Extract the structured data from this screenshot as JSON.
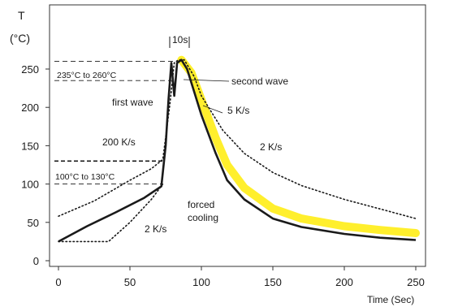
{
  "chart_data": {
    "type": "line",
    "title": "",
    "ylabel": "T",
    "yunit": "(°C)",
    "xlabel": "Time (Sec)",
    "xlim": [
      0,
      250
    ],
    "ylim": [
      0,
      270
    ],
    "x_ticks": [
      "0",
      "50",
      "100",
      "150",
      "200",
      "250"
    ],
    "y_ticks": [
      "0",
      "50",
      "100",
      "150",
      "200",
      "250"
    ],
    "grid": false,
    "series": [
      {
        "style": "solid",
        "color": "#1a1a1a",
        "points": [
          [
            0,
            25
          ],
          [
            20,
            45
          ],
          [
            40,
            63
          ],
          [
            60,
            82
          ],
          [
            72,
            97
          ],
          [
            75,
            150
          ],
          [
            77,
            210
          ],
          [
            79,
            258
          ],
          [
            81,
            215
          ],
          [
            83,
            258
          ],
          [
            86,
            262
          ],
          [
            90,
            250
          ],
          [
            95,
            220
          ],
          [
            100,
            190
          ],
          [
            110,
            140
          ],
          [
            118,
            105
          ],
          [
            130,
            80
          ],
          [
            150,
            55
          ],
          [
            170,
            44
          ],
          [
            200,
            35
          ],
          [
            225,
            30
          ],
          [
            250,
            27
          ]
        ]
      },
      {
        "style": "yellow-band",
        "color": "#ffee22",
        "points": [
          [
            86,
            262
          ],
          [
            93,
            245
          ],
          [
            100,
            210
          ],
          [
            110,
            160
          ],
          [
            118,
            125
          ],
          [
            130,
            95
          ],
          [
            150,
            68
          ],
          [
            170,
            55
          ],
          [
            200,
            45
          ],
          [
            225,
            40
          ],
          [
            250,
            36
          ]
        ]
      },
      {
        "style": "dotted-upper",
        "color": "#1a1a1a",
        "points": [
          [
            0,
            58
          ],
          [
            25,
            78
          ],
          [
            50,
            105
          ],
          [
            65,
            120
          ],
          [
            73,
            132
          ],
          [
            78,
            205
          ],
          [
            81,
            258
          ],
          [
            84,
            262
          ],
          [
            88,
            262
          ],
          [
            95,
            240
          ],
          [
            100,
            215
          ],
          [
            115,
            170
          ],
          [
            130,
            140
          ],
          [
            150,
            115
          ],
          [
            170,
            98
          ],
          [
            200,
            80
          ],
          [
            230,
            65
          ],
          [
            250,
            55
          ]
        ]
      },
      {
        "style": "dotted-lower",
        "color": "#1a1a1a",
        "points": [
          [
            0,
            25
          ],
          [
            35,
            25
          ],
          [
            50,
            50
          ],
          [
            65,
            80
          ],
          [
            73,
            100
          ]
        ]
      }
    ],
    "bands": [
      {
        "label": "235°C to 260°C",
        "from": 235,
        "to": 260
      },
      {
        "label": "100°C to 130°C",
        "from": 100,
        "to": 130
      }
    ],
    "annotations": {
      "ten_s": "10s",
      "second_wave": "second wave",
      "first_wave": "first wave",
      "five_ks": "5 K/s",
      "two_ks_upper": "2 K/s",
      "two_hundred_ks": "200 K/s",
      "two_ks_lower": "2 K/s",
      "forced": "forced",
      "cooling": "cooling"
    }
  }
}
